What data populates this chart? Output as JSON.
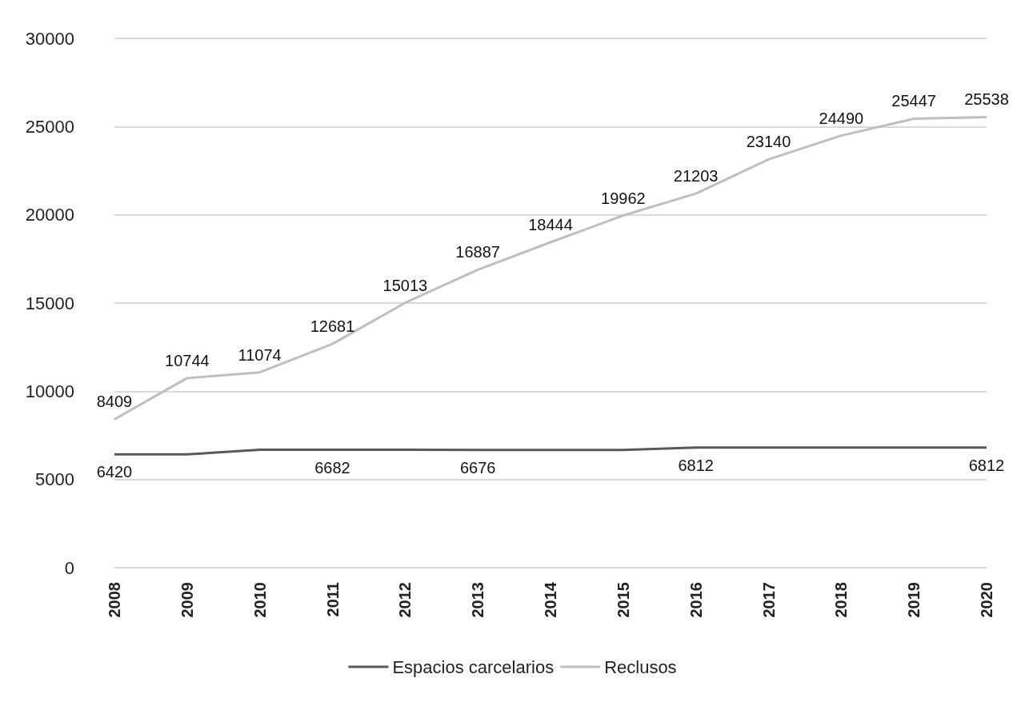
{
  "chart_data": {
    "type": "line",
    "categories": [
      "2008",
      "2009",
      "2010",
      "2011",
      "2012",
      "2013",
      "2014",
      "2015",
      "2016",
      "2017",
      "2018",
      "2019",
      "2020"
    ],
    "series": [
      {
        "name": "Espacios carcelarios",
        "color": "#595959",
        "values": [
          6420,
          6420,
          6682,
          6682,
          6682,
          6676,
          6676,
          6676,
          6812,
          6812,
          6812,
          6812,
          6812
        ],
        "value_labels": [
          "6420",
          null,
          null,
          "6682",
          null,
          "6676",
          null,
          null,
          "6812",
          null,
          null,
          null,
          "6812"
        ]
      },
      {
        "name": "Reclusos",
        "color": "#bfbfbf",
        "values": [
          8409,
          10744,
          11074,
          12681,
          15013,
          16887,
          18444,
          19962,
          21203,
          23140,
          24490,
          25447,
          25538
        ],
        "value_labels": [
          "8409",
          "10744",
          "11074",
          "12681",
          "15013",
          "16887",
          "18444",
          "19962",
          "21203",
          "23140",
          "24490",
          "25447",
          "25538"
        ]
      }
    ],
    "ylim": [
      0,
      30000
    ],
    "yticks": [
      0,
      5000,
      10000,
      15000,
      20000,
      25000,
      30000
    ],
    "grid": "y",
    "legend": "bottom",
    "marker": "none",
    "line_style": "solid"
  }
}
